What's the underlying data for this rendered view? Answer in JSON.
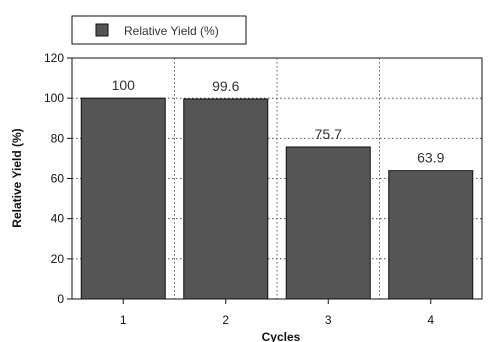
{
  "chart_data": {
    "type": "bar",
    "title": "",
    "xlabel": "Cycles",
    "ylabel": "Relative Yield (%)",
    "categories": [
      "1",
      "2",
      "3",
      "4"
    ],
    "series": [
      {
        "name": "Relative Yield (%)",
        "values": [
          100,
          99.6,
          75.7,
          63.9
        ],
        "color": "#555555"
      }
    ],
    "data_labels": [
      "100",
      "99.6",
      "75.7",
      "63.9"
    ],
    "ylim": [
      0,
      120
    ],
    "yticks": [
      "0",
      "20",
      "40",
      "60",
      "80",
      "100",
      "120"
    ],
    "grid": "dotted",
    "legend": {
      "placement": "top-left",
      "label": "Relative Yield (%)"
    }
  }
}
